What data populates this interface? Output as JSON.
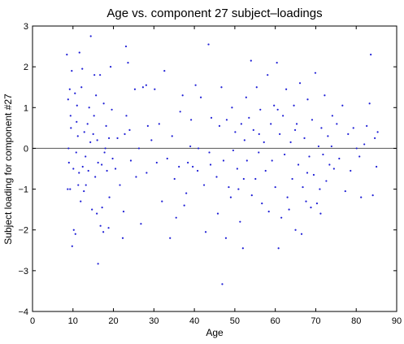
{
  "chart_data": {
    "type": "scatter",
    "title": "Age vs. component 27 subject–loadings",
    "xlabel": "Age",
    "ylabel": "Subject loading for component #27",
    "xlim": [
      0,
      90
    ],
    "ylim": [
      -4,
      3
    ],
    "xticks": [
      "0",
      "10",
      "20",
      "30",
      "40",
      "50",
      "60",
      "70",
      "80",
      "90"
    ],
    "yticks": [
      "3",
      "2",
      "1",
      "0",
      "−1",
      "−2",
      "−3",
      "−4"
    ],
    "reference_line_y": 0,
    "grid": false,
    "legend": "none",
    "colors": {
      "points": "#1f1fd6",
      "axes": "#000000",
      "reference_line": "#555555"
    },
    "points": [
      [
        8.5,
        2.3
      ],
      [
        8.8,
        1.2
      ],
      [
        9.2,
        1.45
      ],
      [
        9.5,
        0.5
      ],
      [
        9.0,
        -0.35
      ],
      [
        9.3,
        -1.0
      ],
      [
        8.7,
        -1.0
      ],
      [
        9.8,
        -2.4
      ],
      [
        10.2,
        -2.0
      ],
      [
        10.6,
        -2.1
      ],
      [
        9.7,
        1.9
      ],
      [
        10.5,
        1.35
      ],
      [
        11.0,
        1.05
      ],
      [
        11.6,
        2.35
      ],
      [
        12.3,
        1.95
      ],
      [
        12.1,
        1.5
      ],
      [
        11.2,
        0.3
      ],
      [
        10.8,
        -0.1
      ],
      [
        11.5,
        -0.6
      ],
      [
        12.4,
        -0.45
      ],
      [
        12.7,
        -1.05
      ],
      [
        11.9,
        -1.3
      ],
      [
        13.2,
        -0.9
      ],
      [
        13.6,
        0.6
      ],
      [
        14.0,
        1.0
      ],
      [
        14.4,
        2.75
      ],
      [
        14.3,
        0.15
      ],
      [
        13.1,
        -0.2
      ],
      [
        15.3,
        1.8
      ],
      [
        15.7,
        1.3
      ],
      [
        15.2,
        0.8
      ],
      [
        15.0,
        0.35
      ],
      [
        16.2,
        -0.35
      ],
      [
        15.5,
        -0.7
      ],
      [
        16.2,
        -2.83
      ],
      [
        16.8,
        -1.9
      ],
      [
        17.1,
        -0.4
      ],
      [
        17.6,
        1.1
      ],
      [
        18.2,
        0.55
      ],
      [
        18.0,
        0.0
      ],
      [
        18.4,
        -0.55
      ],
      [
        18.8,
        -1.95
      ],
      [
        19.3,
        2.0
      ],
      [
        19.6,
        0.95
      ],
      [
        18.9,
        0.25
      ],
      [
        19.8,
        -0.25
      ],
      [
        17.2,
        -1.45
      ],
      [
        17.5,
        -2.05
      ],
      [
        15.9,
        -1.6
      ],
      [
        16.7,
        1.8
      ],
      [
        8.9,
        0.0
      ],
      [
        9.4,
        0.8
      ],
      [
        10.1,
        -0.5
      ],
      [
        10.9,
        0.65
      ],
      [
        11.3,
        -0.9
      ],
      [
        12.8,
        0.4
      ],
      [
        13.8,
        -0.55
      ],
      [
        14.7,
        -1.5
      ],
      [
        16.0,
        0.2
      ],
      [
        17.8,
        -0.1
      ],
      [
        19.0,
        -1.2
      ],
      [
        20.5,
        -0.5
      ],
      [
        21.0,
        0.25
      ],
      [
        21.6,
        -0.9
      ],
      [
        22.3,
        -2.2
      ],
      [
        22.8,
        0.35
      ],
      [
        23.1,
        2.5
      ],
      [
        23.6,
        2.1
      ],
      [
        23.2,
        0.8
      ],
      [
        24.0,
        0.45
      ],
      [
        24.3,
        -0.3
      ],
      [
        22.5,
        -1.55
      ],
      [
        25.3,
        1.45
      ],
      [
        25.6,
        -0.7
      ],
      [
        26.3,
        0.0
      ],
      [
        26.8,
        -1.85
      ],
      [
        27.3,
        1.5
      ],
      [
        28.1,
        1.55
      ],
      [
        28.5,
        0.55
      ],
      [
        28.2,
        -0.6
      ],
      [
        29.4,
        0.2
      ],
      [
        30.2,
        1.45
      ],
      [
        30.7,
        -0.35
      ],
      [
        31.3,
        0.6
      ],
      [
        32.0,
        -1.3
      ],
      [
        32.6,
        1.9
      ],
      [
        33.3,
        -0.25
      ],
      [
        34.0,
        -2.2
      ],
      [
        34.5,
        0.3
      ],
      [
        35.1,
        -0.75
      ],
      [
        35.5,
        -1.7
      ],
      [
        36.2,
        -0.45
      ],
      [
        36.5,
        0.9
      ],
      [
        37.1,
        1.3
      ],
      [
        38.0,
        -1.1
      ],
      [
        38.4,
        -0.35
      ],
      [
        39.2,
        0.7
      ],
      [
        39.6,
        -0.45
      ],
      [
        40.3,
        1.55
      ],
      [
        40.8,
        -0.55
      ],
      [
        41.0,
        0.0
      ],
      [
        41.6,
        1.25
      ],
      [
        42.4,
        -0.9
      ],
      [
        42.8,
        -2.05
      ],
      [
        43.5,
        2.55
      ],
      [
        43.7,
        -0.1
      ],
      [
        44.2,
        0.75
      ],
      [
        45.5,
        -0.7
      ],
      [
        45.8,
        -1.6
      ],
      [
        46.2,
        0.55
      ],
      [
        46.7,
        1.5
      ],
      [
        46.9,
        -3.33
      ],
      [
        47.2,
        -0.3
      ],
      [
        47.8,
        -2.2
      ],
      [
        48.5,
        -0.95
      ],
      [
        49.0,
        -1.2
      ],
      [
        49.3,
        1.0
      ],
      [
        49.6,
        -0.05
      ],
      [
        50.1,
        0.4
      ],
      [
        50.6,
        -0.5
      ],
      [
        50.9,
        -1.0
      ],
      [
        51.3,
        -1.8
      ],
      [
        51.6,
        0.6
      ],
      [
        52.0,
        -2.45
      ],
      [
        52.4,
        0.2
      ],
      [
        52.8,
        1.25
      ],
      [
        53.0,
        -0.3
      ],
      [
        53.5,
        0.75
      ],
      [
        54.0,
        2.15
      ],
      [
        54.2,
        -1.15
      ],
      [
        54.6,
        0.45
      ],
      [
        55.1,
        -0.75
      ],
      [
        55.4,
        1.5
      ],
      [
        55.9,
        -0.1
      ],
      [
        56.3,
        0.95
      ],
      [
        56.7,
        -1.35
      ],
      [
        57.2,
        0.15
      ],
      [
        57.6,
        -0.55
      ],
      [
        58.1,
        1.8
      ],
      [
        58.4,
        -1.55
      ],
      [
        58.9,
        0.6
      ],
      [
        59.2,
        -0.3
      ],
      [
        59.7,
        1.05
      ],
      [
        60.0,
        -0.95
      ],
      [
        60.4,
        2.1
      ],
      [
        60.8,
        -2.45
      ],
      [
        61.1,
        0.35
      ],
      [
        61.5,
        -1.7
      ],
      [
        61.9,
        0.8
      ],
      [
        62.3,
        -0.15
      ],
      [
        62.7,
        1.45
      ],
      [
        63.0,
        -1.2
      ],
      [
        63.4,
        -1.5
      ],
      [
        63.8,
        0.15
      ],
      [
        64.2,
        -0.75
      ],
      [
        64.6,
        1.05
      ],
      [
        65.0,
        -2.0
      ],
      [
        65.3,
        0.6
      ],
      [
        65.7,
        -0.4
      ],
      [
        66.1,
        1.6
      ],
      [
        66.5,
        -2.1
      ],
      [
        66.8,
        -0.95
      ],
      [
        67.2,
        0.25
      ],
      [
        67.6,
        -1.3
      ],
      [
        68.0,
        1.2
      ],
      [
        68.4,
        -0.2
      ],
      [
        68.8,
        -1.45
      ],
      [
        69.1,
        0.7
      ],
      [
        69.5,
        -0.65
      ],
      [
        69.9,
        1.85
      ],
      [
        70.3,
        -1.35
      ],
      [
        70.7,
        0.05
      ],
      [
        71.0,
        -1.0
      ],
      [
        71.4,
        0.5
      ],
      [
        71.8,
        -0.15
      ],
      [
        72.2,
        1.3
      ],
      [
        72.6,
        -0.8
      ],
      [
        73.0,
        0.3
      ],
      [
        73.4,
        -0.4
      ],
      [
        73.9,
        0.05
      ],
      [
        74.5,
        -0.5
      ],
      [
        75.2,
        0.6
      ],
      [
        75.8,
        -0.25
      ],
      [
        76.6,
        1.05
      ],
      [
        77.3,
        -1.05
      ],
      [
        78.0,
        0.35
      ],
      [
        78.6,
        -0.55
      ],
      [
        79.3,
        0.5
      ],
      [
        80.1,
        0.0
      ],
      [
        80.8,
        -0.2
      ],
      [
        81.2,
        -1.2
      ],
      [
        82.0,
        0.1
      ],
      [
        82.6,
        0.55
      ],
      [
        83.3,
        1.1
      ],
      [
        83.6,
        2.3
      ],
      [
        84.1,
        -1.15
      ],
      [
        84.6,
        0.25
      ],
      [
        85.0,
        -0.45
      ],
      [
        85.3,
        0.4
      ],
      [
        44.0,
        -0.4
      ],
      [
        37.5,
        -1.4
      ],
      [
        39.0,
        0.05
      ],
      [
        48.0,
        0.7
      ],
      [
        52.2,
        -0.75
      ],
      [
        56.0,
        0.35
      ],
      [
        60.6,
        0.95
      ],
      [
        64.9,
        0.45
      ],
      [
        67.9,
        -0.6
      ],
      [
        71.2,
        -1.6
      ],
      [
        74.1,
        0.8
      ]
    ]
  }
}
